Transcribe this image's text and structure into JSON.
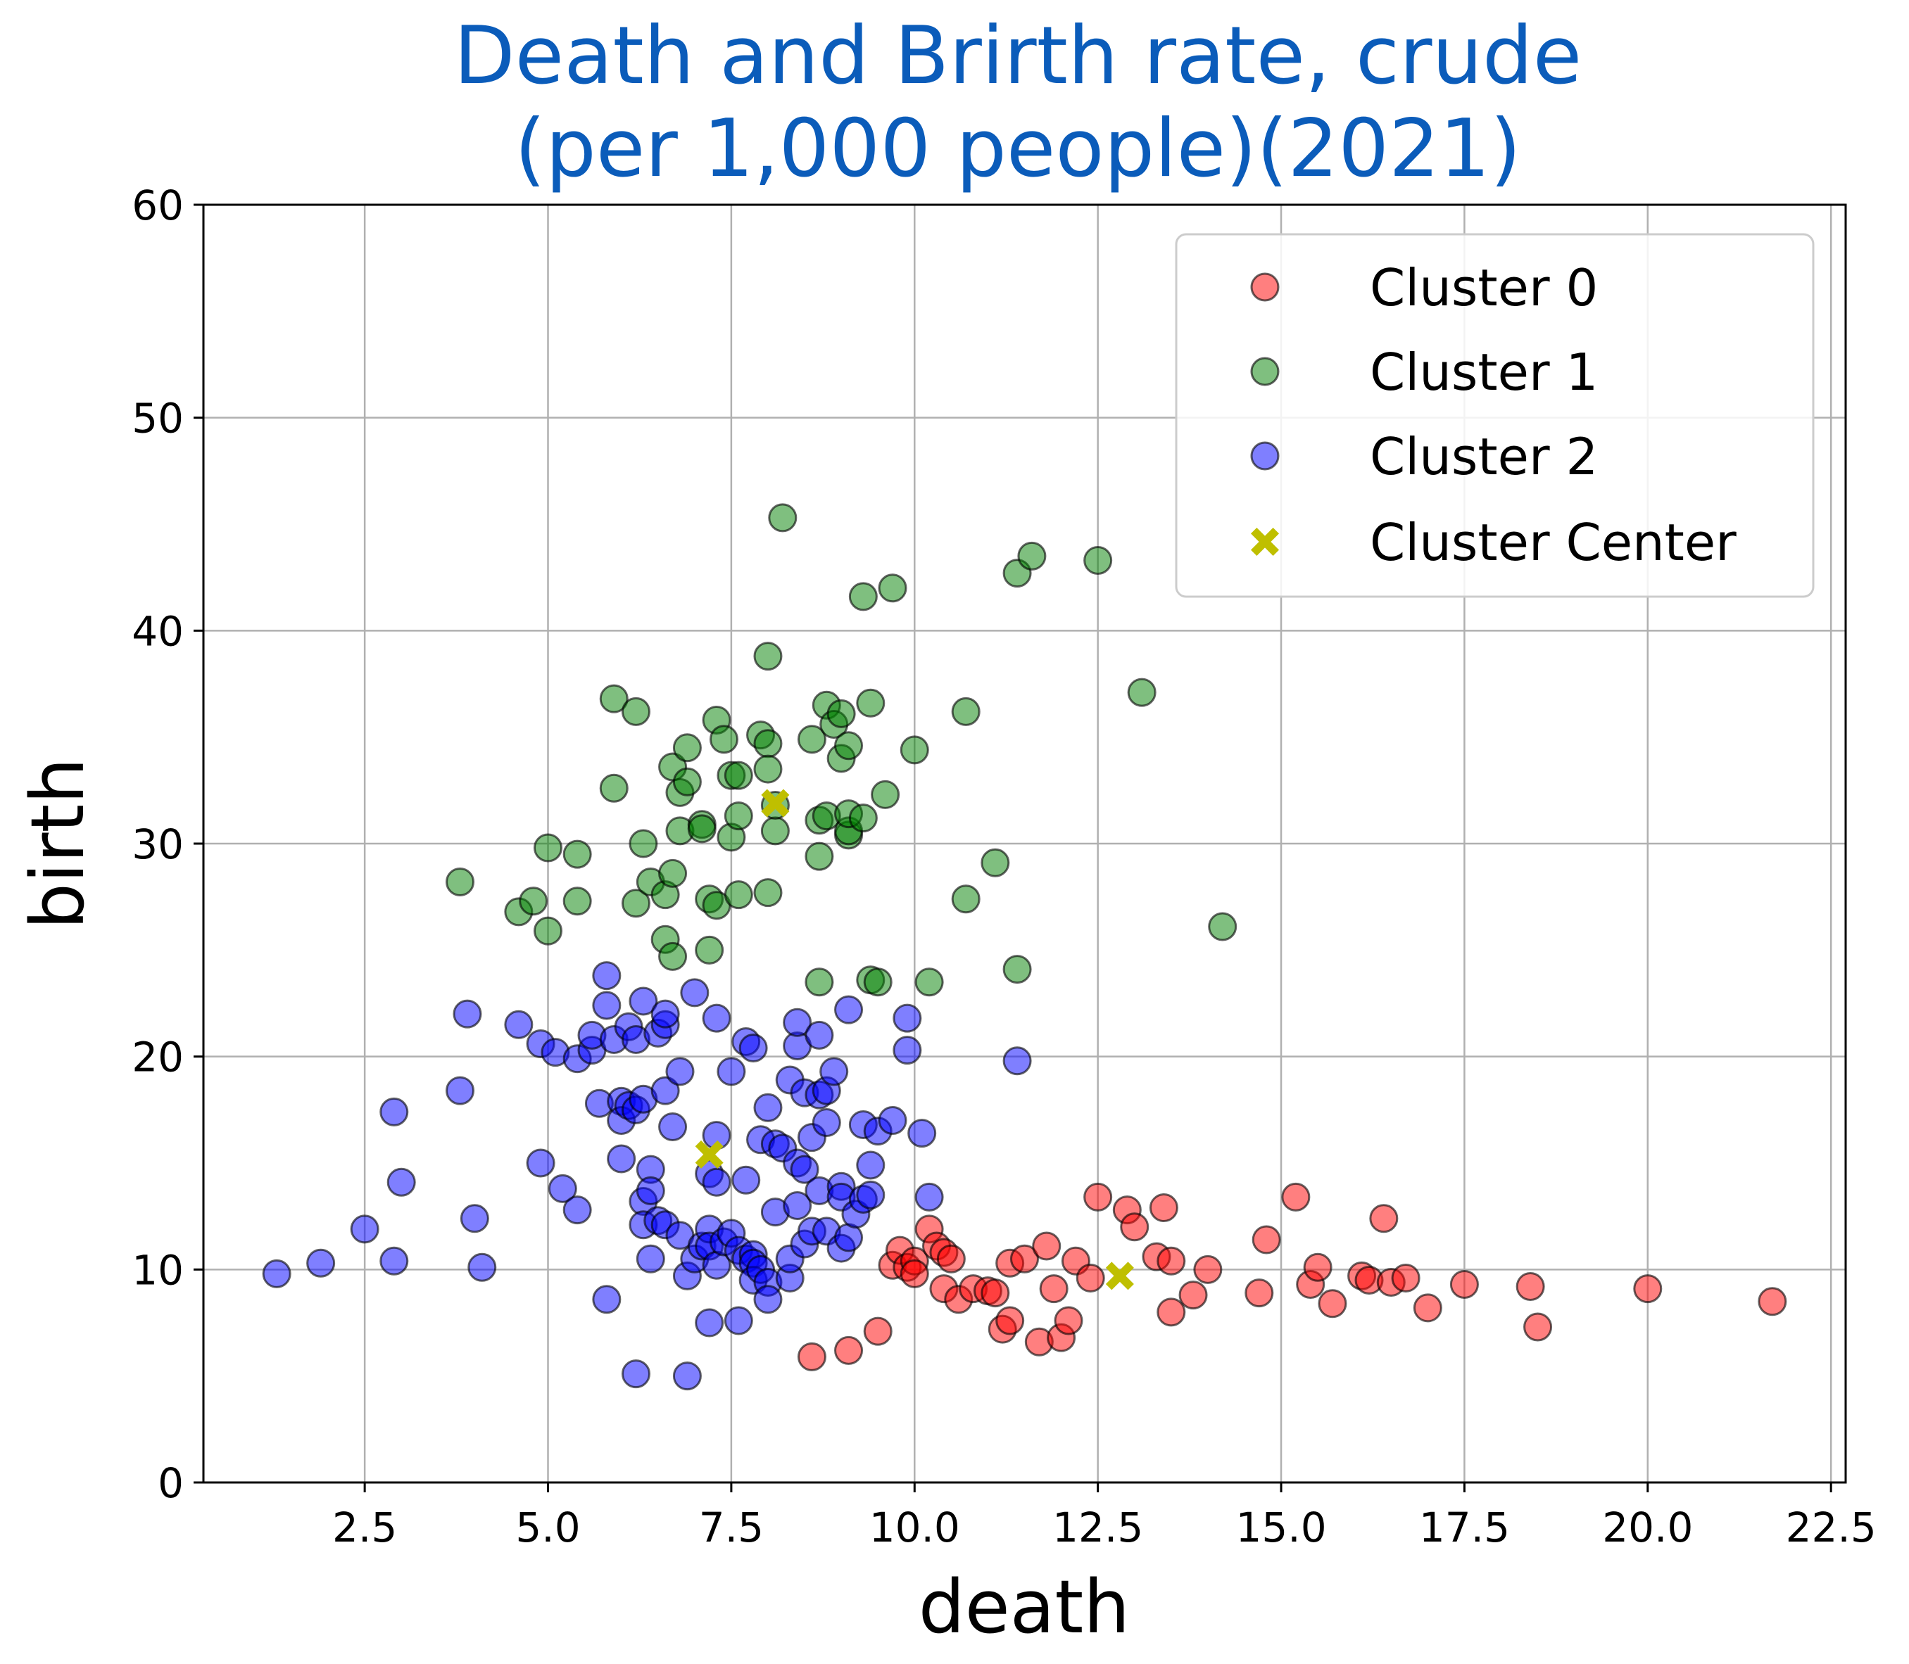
{
  "chart_data": {
    "type": "scatter",
    "title_line1": "Death and Brirth rate, crude",
    "title_line2": "(per 1,000 people)(2021)",
    "xlabel": "death",
    "ylabel": "birth",
    "xlim": [
      0.3,
      22.7
    ],
    "ylim": [
      0,
      60
    ],
    "xticks": [
      2.5,
      5.0,
      7.5,
      10.0,
      12.5,
      15.0,
      17.5,
      20.0,
      22.5
    ],
    "xtick_labels": [
      "2.5",
      "5.0",
      "7.5",
      "10.0",
      "12.5",
      "15.0",
      "17.5",
      "20.0",
      "22.5"
    ],
    "yticks": [
      0,
      10,
      20,
      30,
      40,
      50,
      60
    ],
    "ytick_labels": [
      "0",
      "10",
      "20",
      "30",
      "40",
      "50",
      "60"
    ],
    "grid": true,
    "legend_position": "top-right",
    "series": [
      {
        "name": "Cluster 0",
        "color": "#ff0000",
        "points": [
          [
            8.6,
            5.9
          ],
          [
            9.1,
            6.2
          ],
          [
            9.5,
            7.1
          ],
          [
            9.7,
            10.2
          ],
          [
            9.8,
            10.9
          ],
          [
            9.9,
            10.1
          ],
          [
            10.0,
            10.4
          ],
          [
            10.0,
            9.8
          ],
          [
            10.2,
            11.9
          ],
          [
            10.3,
            11.1
          ],
          [
            10.4,
            10.8
          ],
          [
            10.4,
            9.1
          ],
          [
            10.5,
            10.5
          ],
          [
            10.6,
            8.6
          ],
          [
            10.8,
            9.1
          ],
          [
            11.0,
            9.0
          ],
          [
            11.1,
            8.9
          ],
          [
            11.2,
            7.2
          ],
          [
            11.3,
            7.6
          ],
          [
            11.3,
            10.3
          ],
          [
            11.5,
            10.5
          ],
          [
            11.7,
            6.6
          ],
          [
            11.8,
            11.1
          ],
          [
            11.9,
            9.1
          ],
          [
            12.0,
            6.8
          ],
          [
            12.1,
            7.6
          ],
          [
            12.2,
            10.4
          ],
          [
            12.4,
            9.6
          ],
          [
            12.5,
            13.4
          ],
          [
            12.9,
            12.8
          ],
          [
            13.0,
            12.0
          ],
          [
            13.3,
            10.6
          ],
          [
            13.4,
            12.9
          ],
          [
            13.5,
            10.4
          ],
          [
            13.5,
            8.0
          ],
          [
            13.8,
            8.8
          ],
          [
            14.0,
            10.0
          ],
          [
            14.7,
            8.9
          ],
          [
            14.8,
            11.4
          ],
          [
            15.2,
            13.4
          ],
          [
            15.4,
            9.3
          ],
          [
            15.5,
            10.1
          ],
          [
            15.7,
            8.4
          ],
          [
            16.1,
            9.7
          ],
          [
            16.2,
            9.5
          ],
          [
            16.4,
            12.4
          ],
          [
            16.5,
            9.4
          ],
          [
            16.7,
            9.6
          ],
          [
            17.0,
            8.2
          ],
          [
            17.5,
            9.3
          ],
          [
            18.4,
            9.2
          ],
          [
            18.5,
            7.3
          ],
          [
            20.0,
            9.1
          ],
          [
            21.7,
            8.5
          ]
        ]
      },
      {
        "name": "Cluster 1",
        "color": "#008000",
        "points": [
          [
            3.8,
            28.2
          ],
          [
            4.6,
            26.8
          ],
          [
            4.8,
            27.3
          ],
          [
            5.0,
            29.8
          ],
          [
            5.0,
            25.9
          ],
          [
            5.4,
            29.5
          ],
          [
            5.4,
            27.3
          ],
          [
            5.9,
            36.8
          ],
          [
            5.9,
            32.6
          ],
          [
            6.2,
            36.2
          ],
          [
            6.2,
            27.2
          ],
          [
            6.3,
            30.0
          ],
          [
            6.4,
            28.2
          ],
          [
            6.6,
            27.6
          ],
          [
            6.6,
            25.5
          ],
          [
            6.7,
            28.6
          ],
          [
            6.7,
            24.7
          ],
          [
            6.7,
            33.6
          ],
          [
            6.8,
            32.4
          ],
          [
            6.8,
            30.6
          ],
          [
            6.9,
            32.9
          ],
          [
            6.9,
            34.5
          ],
          [
            7.1,
            30.9
          ],
          [
            7.1,
            30.7
          ],
          [
            7.2,
            27.4
          ],
          [
            7.2,
            25.0
          ],
          [
            7.3,
            27.1
          ],
          [
            7.3,
            35.8
          ],
          [
            7.4,
            34.9
          ],
          [
            7.5,
            33.2
          ],
          [
            7.5,
            30.3
          ],
          [
            7.6,
            31.3
          ],
          [
            7.6,
            27.6
          ],
          [
            7.6,
            33.2
          ],
          [
            7.9,
            35.1
          ],
          [
            8.0,
            34.7
          ],
          [
            8.0,
            33.5
          ],
          [
            8.0,
            38.8
          ],
          [
            8.0,
            27.7
          ],
          [
            8.1,
            30.6
          ],
          [
            8.1,
            31.8
          ],
          [
            8.2,
            45.3
          ],
          [
            8.6,
            34.9
          ],
          [
            8.7,
            23.5
          ],
          [
            8.7,
            31.1
          ],
          [
            8.7,
            29.4
          ],
          [
            8.8,
            36.5
          ],
          [
            8.8,
            31.3
          ],
          [
            8.9,
            35.6
          ],
          [
            9.0,
            34.0
          ],
          [
            9.0,
            36.1
          ],
          [
            9.1,
            30.4
          ],
          [
            9.1,
            30.6
          ],
          [
            9.1,
            34.6
          ],
          [
            9.1,
            31.4
          ],
          [
            9.3,
            41.6
          ],
          [
            9.3,
            31.2
          ],
          [
            9.4,
            36.6
          ],
          [
            9.4,
            23.6
          ],
          [
            9.5,
            23.5
          ],
          [
            9.6,
            32.3
          ],
          [
            9.7,
            42.0
          ],
          [
            10.0,
            34.4
          ],
          [
            10.2,
            23.5
          ],
          [
            10.7,
            36.2
          ],
          [
            10.7,
            27.4
          ],
          [
            11.1,
            29.1
          ],
          [
            11.4,
            24.1
          ],
          [
            11.4,
            42.7
          ],
          [
            11.6,
            43.5
          ],
          [
            12.5,
            43.3
          ],
          [
            13.1,
            37.1
          ],
          [
            14.2,
            26.1
          ]
        ]
      },
      {
        "name": "Cluster 2",
        "color": "#0000ff",
        "points": [
          [
            1.3,
            9.8
          ],
          [
            1.9,
            10.3
          ],
          [
            2.5,
            11.9
          ],
          [
            2.9,
            17.4
          ],
          [
            2.9,
            10.4
          ],
          [
            3.0,
            14.1
          ],
          [
            3.8,
            18.4
          ],
          [
            3.9,
            22.0
          ],
          [
            4.0,
            12.4
          ],
          [
            4.1,
            10.1
          ],
          [
            4.6,
            21.5
          ],
          [
            4.9,
            20.6
          ],
          [
            4.9,
            15.0
          ],
          [
            5.1,
            20.2
          ],
          [
            5.2,
            13.8
          ],
          [
            5.4,
            12.8
          ],
          [
            5.4,
            19.9
          ],
          [
            5.6,
            20.3
          ],
          [
            5.6,
            21.0
          ],
          [
            5.7,
            17.8
          ],
          [
            5.8,
            23.8
          ],
          [
            5.8,
            22.4
          ],
          [
            5.8,
            8.6
          ],
          [
            5.9,
            20.8
          ],
          [
            6.0,
            17.9
          ],
          [
            6.0,
            17.0
          ],
          [
            6.0,
            15.2
          ],
          [
            6.1,
            21.4
          ],
          [
            6.1,
            17.7
          ],
          [
            6.2,
            17.5
          ],
          [
            6.2,
            5.1
          ],
          [
            6.2,
            20.8
          ],
          [
            6.3,
            22.6
          ],
          [
            6.3,
            18.0
          ],
          [
            6.3,
            13.2
          ],
          [
            6.3,
            12.1
          ],
          [
            6.4,
            14.7
          ],
          [
            6.4,
            13.7
          ],
          [
            6.4,
            10.5
          ],
          [
            6.5,
            12.3
          ],
          [
            6.5,
            21.1
          ],
          [
            6.6,
            21.5
          ],
          [
            6.6,
            22.0
          ],
          [
            6.6,
            18.4
          ],
          [
            6.6,
            12.1
          ],
          [
            6.7,
            16.7
          ],
          [
            6.8,
            11.6
          ],
          [
            6.8,
            19.3
          ],
          [
            6.9,
            5.0
          ],
          [
            6.9,
            9.7
          ],
          [
            7.0,
            23.0
          ],
          [
            7.0,
            10.5
          ],
          [
            7.1,
            11.1
          ],
          [
            7.2,
            7.5
          ],
          [
            7.2,
            14.5
          ],
          [
            7.2,
            11.9
          ],
          [
            7.2,
            11.1
          ],
          [
            7.3,
            10.2
          ],
          [
            7.3,
            21.8
          ],
          [
            7.3,
            16.3
          ],
          [
            7.3,
            14.1
          ],
          [
            7.4,
            11.3
          ],
          [
            7.5,
            11.7
          ],
          [
            7.5,
            19.3
          ],
          [
            7.6,
            10.9
          ],
          [
            7.6,
            7.6
          ],
          [
            7.7,
            14.2
          ],
          [
            7.7,
            20.7
          ],
          [
            7.7,
            10.5
          ],
          [
            7.8,
            20.4
          ],
          [
            7.8,
            10.7
          ],
          [
            7.8,
            10.3
          ],
          [
            7.8,
            9.5
          ],
          [
            7.9,
            16.1
          ],
          [
            7.9,
            10.0
          ],
          [
            8.0,
            9.4
          ],
          [
            8.0,
            8.6
          ],
          [
            8.0,
            17.6
          ],
          [
            8.1,
            12.7
          ],
          [
            8.1,
            15.9
          ],
          [
            8.2,
            15.7
          ],
          [
            8.3,
            9.6
          ],
          [
            8.3,
            10.5
          ],
          [
            8.3,
            18.9
          ],
          [
            8.4,
            20.5
          ],
          [
            8.4,
            21.6
          ],
          [
            8.4,
            13.0
          ],
          [
            8.4,
            15.0
          ],
          [
            8.5,
            14.7
          ],
          [
            8.5,
            11.2
          ],
          [
            8.5,
            18.3
          ],
          [
            8.6,
            16.2
          ],
          [
            8.6,
            11.8
          ],
          [
            8.7,
            21.0
          ],
          [
            8.7,
            18.2
          ],
          [
            8.7,
            13.7
          ],
          [
            8.8,
            18.4
          ],
          [
            8.8,
            16.9
          ],
          [
            8.8,
            11.8
          ],
          [
            8.9,
            19.3
          ],
          [
            9.0,
            13.9
          ],
          [
            9.0,
            13.4
          ],
          [
            9.0,
            11.0
          ],
          [
            9.1,
            22.2
          ],
          [
            9.1,
            11.5
          ],
          [
            9.2,
            12.6
          ],
          [
            9.3,
            16.8
          ],
          [
            9.3,
            13.3
          ],
          [
            9.4,
            14.9
          ],
          [
            9.4,
            13.5
          ],
          [
            9.5,
            16.5
          ],
          [
            9.7,
            17.0
          ],
          [
            9.9,
            21.8
          ],
          [
            9.9,
            20.3
          ],
          [
            10.1,
            16.4
          ],
          [
            10.2,
            13.4
          ],
          [
            11.4,
            19.8
          ]
        ]
      }
    ],
    "centers": {
      "name": "Cluster Center",
      "color": "#bfbf00",
      "points": [
        [
          7.2,
          15.4
        ],
        [
          8.1,
          31.9
        ],
        [
          12.8,
          9.7
        ]
      ]
    }
  }
}
